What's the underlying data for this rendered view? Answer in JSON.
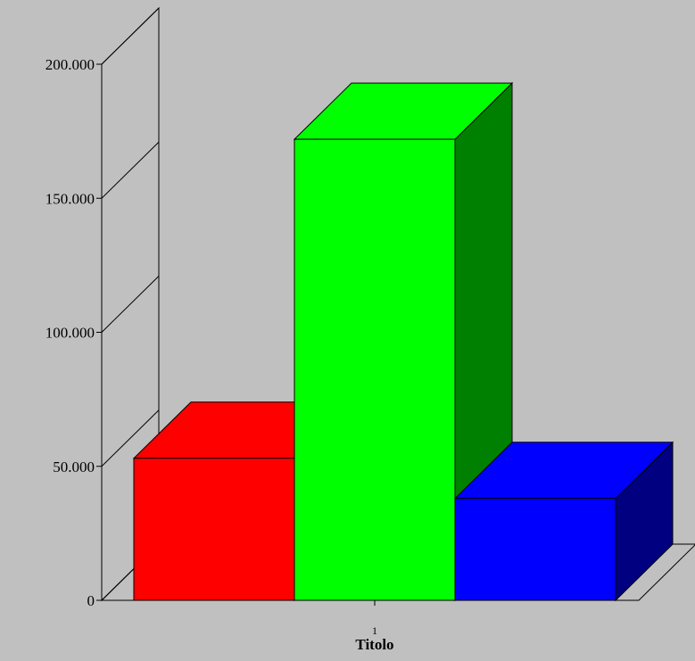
{
  "chart_data": {
    "type": "bar",
    "categories": [
      "1"
    ],
    "series": [
      {
        "values": [
          53000
        ],
        "colors": {
          "front": "#ff0000",
          "top": "#ff0000",
          "side": "#800000"
        }
      },
      {
        "values": [
          172000
        ],
        "colors": {
          "front": "#00ff00",
          "top": "#00ff00",
          "side": "#008000"
        }
      },
      {
        "values": [
          38000
        ],
        "colors": {
          "front": "#0000ff",
          "top": "#0000ff",
          "side": "#000080"
        }
      }
    ],
    "title": "",
    "xlabel": "Titolo",
    "ylabel": "",
    "ylim": [
      0,
      200000
    ],
    "yticks": [
      {
        "value": 0,
        "label": "0"
      },
      {
        "value": 50000,
        "label": "50.000"
      },
      {
        "value": 100000,
        "label": "100.000"
      },
      {
        "value": 150000,
        "label": "150.000"
      },
      {
        "value": 200000,
        "label": "200.000"
      }
    ],
    "grid": false,
    "legend": "none",
    "projection": "3d"
  }
}
